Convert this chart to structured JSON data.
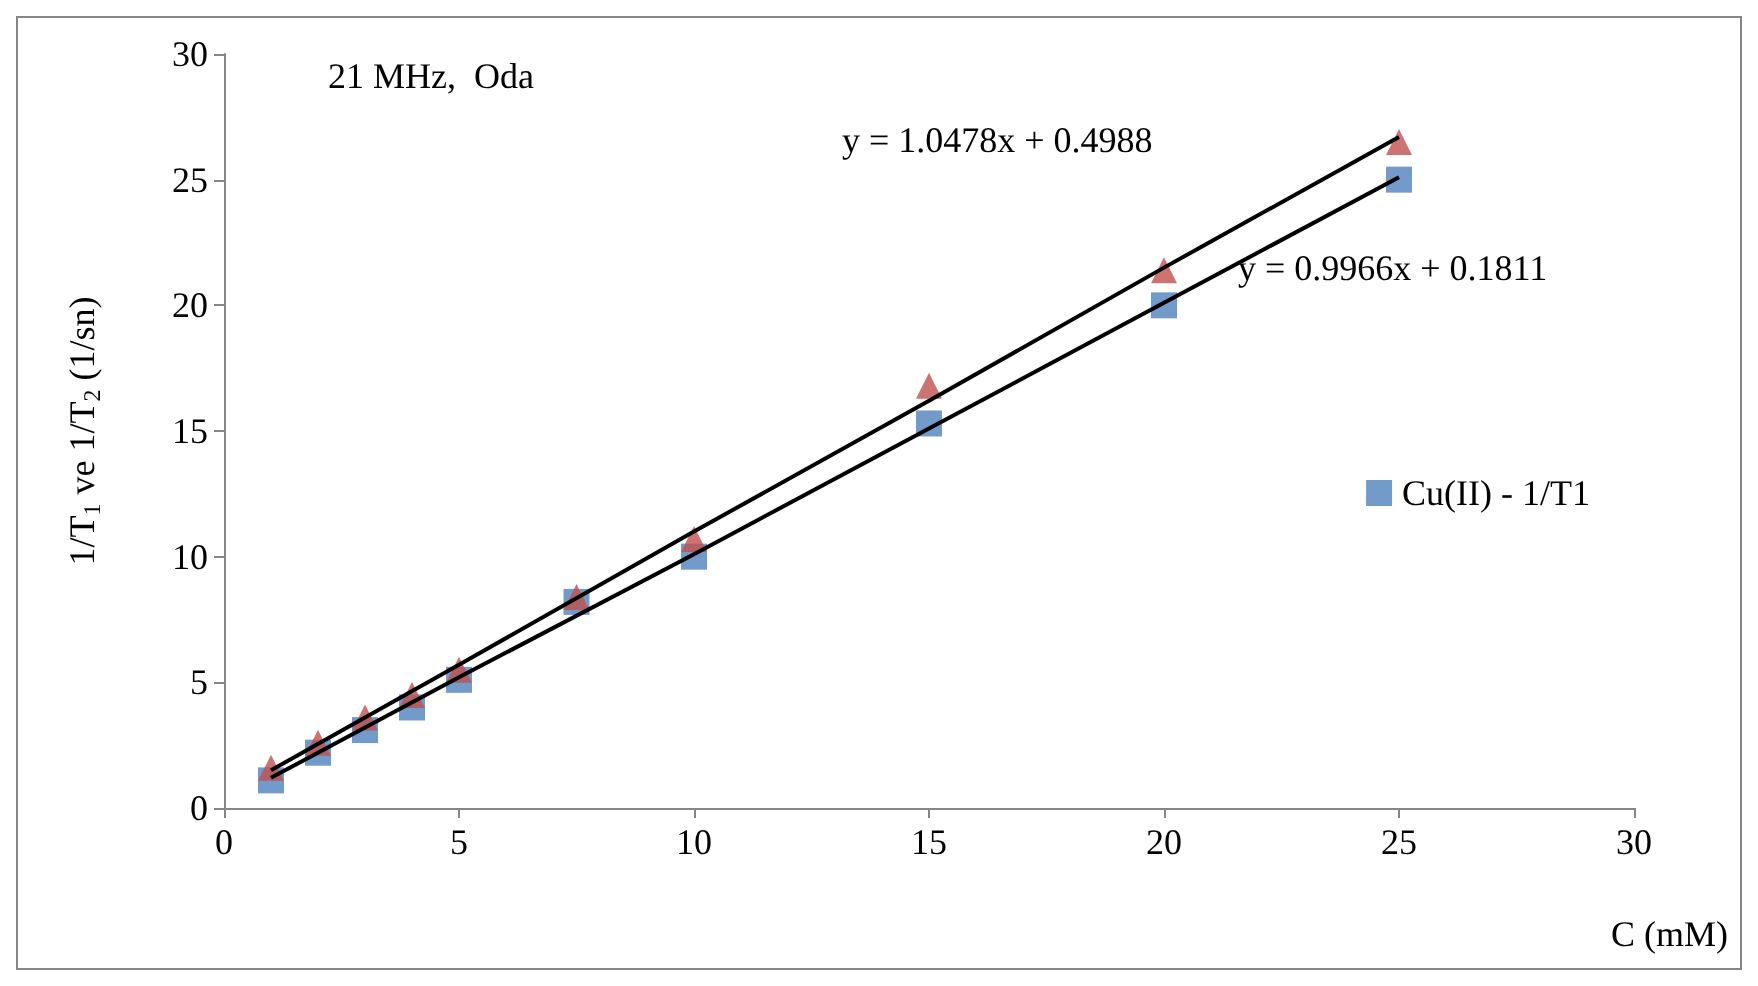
{
  "chart_data": {
    "type": "scatter",
    "xlabel": "C (mM)",
    "ylabel": "1/T$_{1}$ ve 1/T$_{2}$ (1/sn)",
    "x": [
      1,
      2,
      3,
      4,
      5,
      7.5,
      10,
      15,
      20,
      25
    ],
    "series": [
      {
        "name": "Cu(II) - 1/T1",
        "color": "#4f81bd",
        "marker": "square",
        "values": [
          1.1,
          2.2,
          3.1,
          4.0,
          5.1,
          8.2,
          10.0,
          15.3,
          20.0,
          25.0
        ]
      },
      {
        "color": "#c0504d",
        "marker": "triangle",
        "values": [
          1.6,
          2.6,
          3.6,
          4.5,
          5.5,
          8.4,
          10.7,
          16.8,
          21.4,
          26.5
        ]
      },
      {
        "type": "line",
        "color": "#000000",
        "marker": "none",
        "x": [
          1,
          5,
          10,
          15,
          20,
          25
        ],
        "values": [
          1.2,
          5.2,
          10.1,
          15.1,
          20.1,
          25.1
        ]
      },
      {
        "type": "line",
        "color": "#000000",
        "marker": "none",
        "x": [
          1,
          5,
          10,
          15,
          20,
          25
        ],
        "values": [
          1.5,
          5.7,
          11.0,
          16.2,
          21.5,
          26.7
        ]
      }
    ],
    "annotations": [
      "21 MHz,  Oda",
      "y = 1.0478x + 0.4988",
      "y = 0.9966x + 0.1811"
    ],
    "xlim": [
      0,
      30
    ],
    "xticks": [
      0,
      5,
      10,
      15,
      20,
      25,
      30
    ],
    "ylim": [
      0,
      30
    ],
    "yticks": [
      0,
      5,
      10,
      15,
      20,
      25,
      30
    ],
    "grid": false,
    "legend": "right"
  }
}
